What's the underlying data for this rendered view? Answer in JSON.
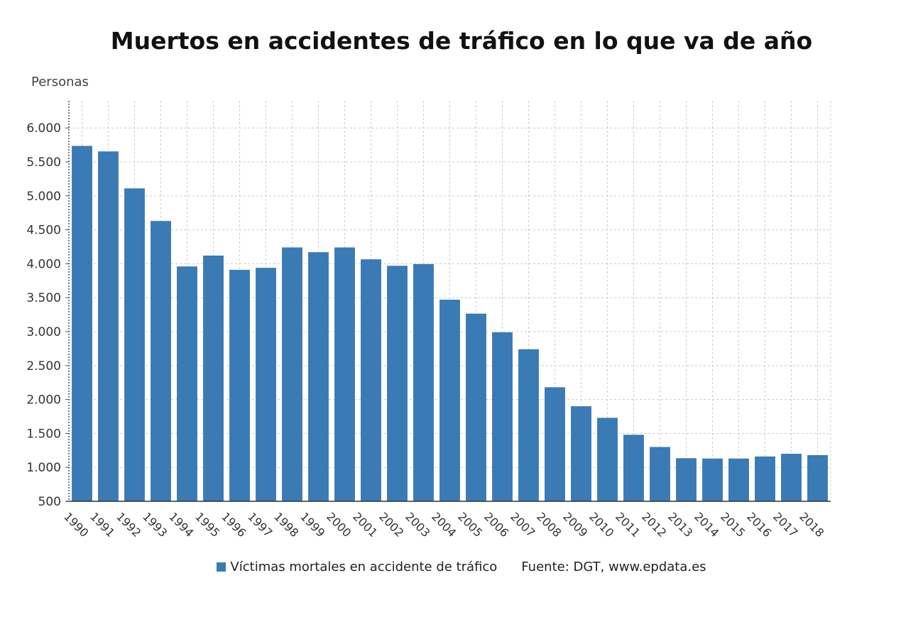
{
  "chart_data": {
    "type": "bar",
    "title": "Muertos en accidentes de tráfico en lo que va de año",
    "ylabel": "Personas",
    "xlabel": "",
    "categories": [
      "1990",
      "1991",
      "1992",
      "1993",
      "1994",
      "1995",
      "1996",
      "1997",
      "1998",
      "1999",
      "2000",
      "2001",
      "2002",
      "2003",
      "2004",
      "2005",
      "2006",
      "2007",
      "2008",
      "2009",
      "2010",
      "2011",
      "2012",
      "2013",
      "2014",
      "2015",
      "2016",
      "2017",
      "2018"
    ],
    "series": [
      {
        "name": "Víctimas mortales en accidente de tráfico",
        "color": "#3a7ab5",
        "values": [
          5736,
          5655,
          5110,
          4630,
          3960,
          4120,
          3910,
          3940,
          4240,
          4170,
          4240,
          4065,
          3970,
          3995,
          3470,
          3265,
          2990,
          2740,
          2180,
          1900,
          1730,
          1480,
          1300,
          1135,
          1130,
          1130,
          1160,
          1200,
          1180
        ]
      }
    ],
    "ylim": [
      500,
      6400
    ],
    "yticks": [
      500,
      1000,
      1500,
      2000,
      2500,
      3000,
      3500,
      4000,
      4500,
      5000,
      5500,
      6000
    ],
    "ytick_labels": [
      "500",
      "1.000",
      "1.500",
      "2.000",
      "2.500",
      "3.000",
      "3.500",
      "4.000",
      "4.500",
      "5.000",
      "5.500",
      "6.000"
    ],
    "grid": true,
    "legend_position": "bottom",
    "source": "Fuente: DGT, www.epdata.es"
  }
}
